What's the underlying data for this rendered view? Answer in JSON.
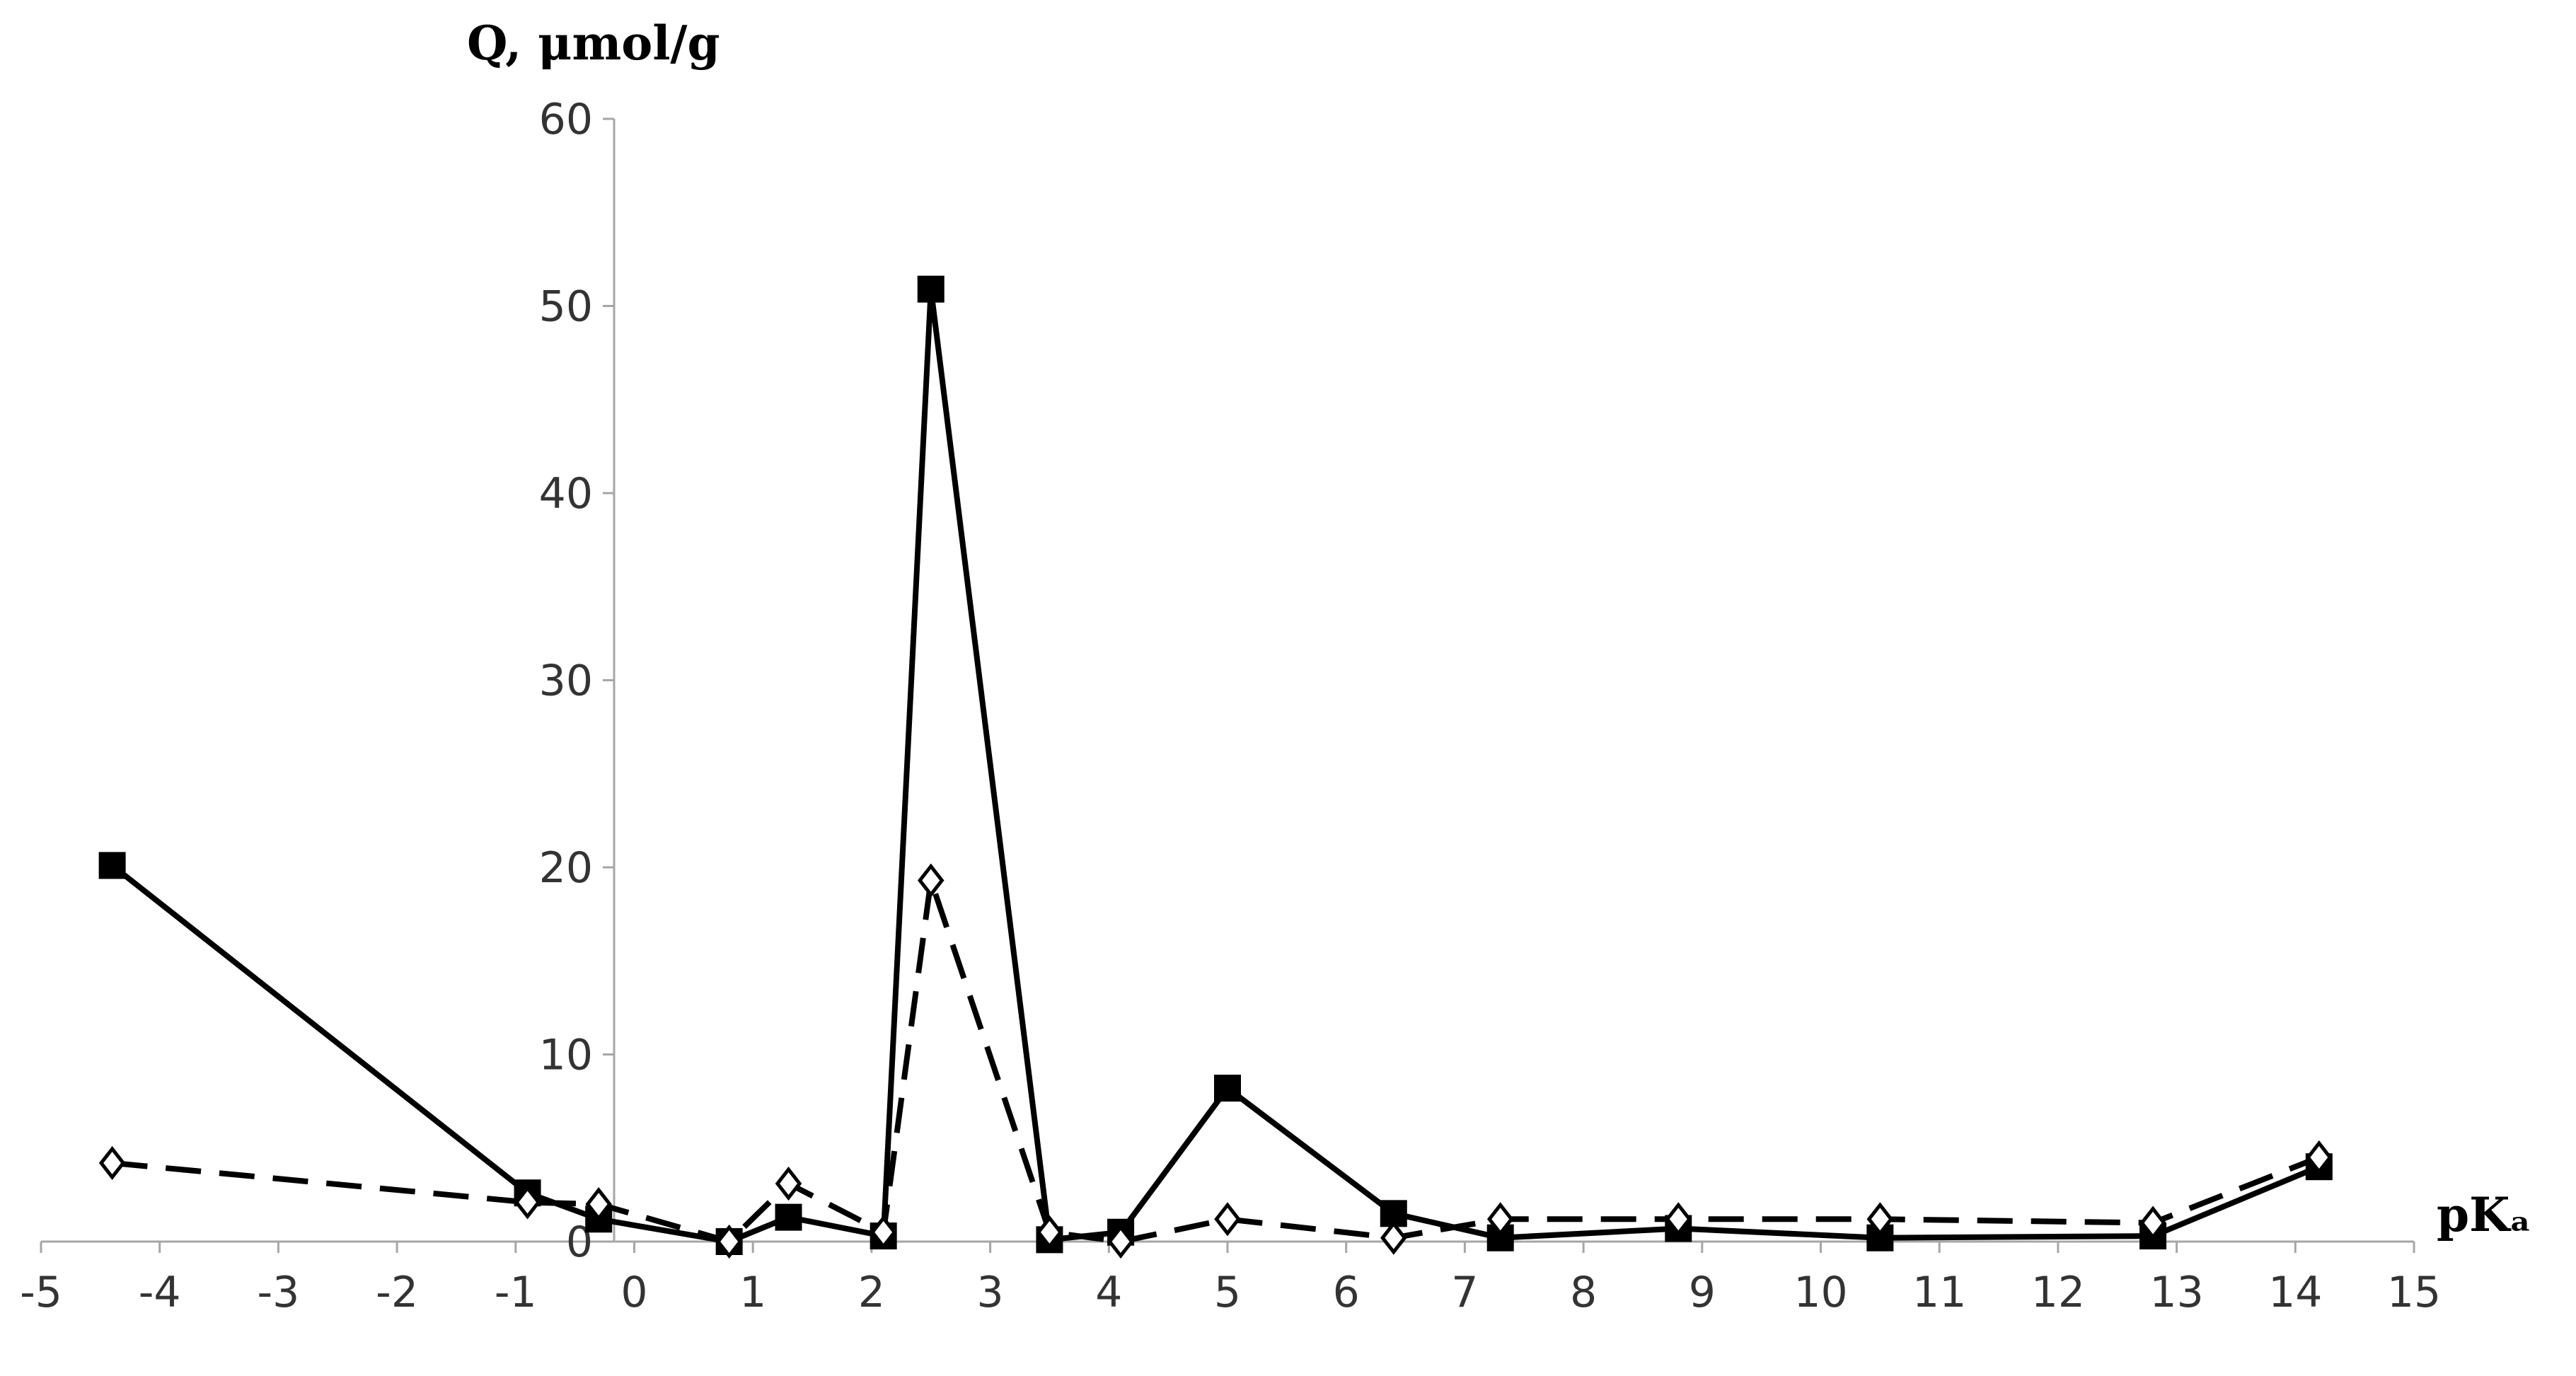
{
  "chart_data": {
    "type": "line",
    "ylabel": "Q, μmol/g",
    "xlabel": "pKₐ",
    "xlim": [
      -5,
      15
    ],
    "ylim": [
      0,
      60
    ],
    "x_ticks": [
      -5,
      -4,
      -3,
      -2,
      -1,
      0,
      1,
      2,
      3,
      4,
      5,
      6,
      7,
      8,
      9,
      10,
      11,
      12,
      13,
      14,
      15
    ],
    "y_ticks": [
      0,
      10,
      20,
      30,
      40,
      50,
      60
    ],
    "grid": false,
    "legend": "none",
    "series": [
      {
        "style": "solid",
        "marker": "filled-square",
        "color": "#000000",
        "points": [
          {
            "x": -4.4,
            "y": 20.1
          },
          {
            "x": -0.9,
            "y": 2.6
          },
          {
            "x": -0.3,
            "y": 1.2
          },
          {
            "x": 0.8,
            "y": 0.0
          },
          {
            "x": 1.3,
            "y": 1.3
          },
          {
            "x": 2.1,
            "y": 0.3
          },
          {
            "x": 2.5,
            "y": 50.9
          },
          {
            "x": 3.5,
            "y": 0.1
          },
          {
            "x": 4.1,
            "y": 0.5
          },
          {
            "x": 5.0,
            "y": 8.2
          },
          {
            "x": 6.4,
            "y": 1.5
          },
          {
            "x": 7.3,
            "y": 0.2
          },
          {
            "x": 8.8,
            "y": 0.7
          },
          {
            "x": 10.5,
            "y": 0.2
          },
          {
            "x": 12.8,
            "y": 0.3
          },
          {
            "x": 14.2,
            "y": 4.0
          }
        ]
      },
      {
        "style": "dashed",
        "marker": "open-diamond",
        "color": "#000000",
        "points": [
          {
            "x": -4.4,
            "y": 4.2
          },
          {
            "x": -0.9,
            "y": 2.1
          },
          {
            "x": -0.3,
            "y": 2.0
          },
          {
            "x": 0.8,
            "y": 0.0
          },
          {
            "x": 1.3,
            "y": 3.1
          },
          {
            "x": 2.1,
            "y": 0.5
          },
          {
            "x": 2.5,
            "y": 19.3
          },
          {
            "x": 3.5,
            "y": 0.5
          },
          {
            "x": 4.1,
            "y": 0.0
          },
          {
            "x": 5.0,
            "y": 1.2
          },
          {
            "x": 6.4,
            "y": 0.2
          },
          {
            "x": 7.3,
            "y": 1.2
          },
          {
            "x": 8.8,
            "y": 1.2
          },
          {
            "x": 10.5,
            "y": 1.2
          },
          {
            "x": 12.8,
            "y": 1.0
          },
          {
            "x": 14.2,
            "y": 4.5
          }
        ]
      }
    ]
  }
}
